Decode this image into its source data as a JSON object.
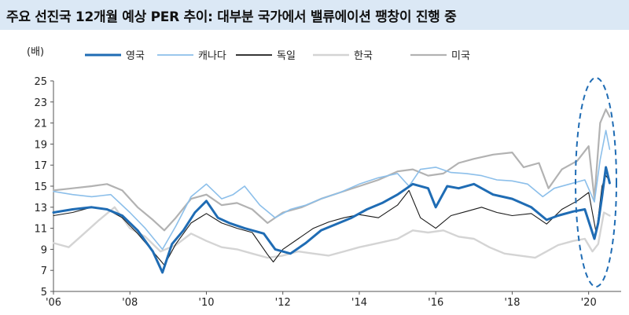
{
  "title": "주요 선진국 12개월 예상 PER 추이: 대부분 국가에서 밸류에이션 팽창이 진행 중",
  "chart_data": {
    "type": "line",
    "ylabel": "(배)",
    "ylim": [
      5,
      25
    ],
    "yticks": [
      5,
      7,
      9,
      11,
      13,
      15,
      17,
      19,
      21,
      23,
      25
    ],
    "xlim": [
      2006.0,
      2020.85
    ],
    "xticks": [
      {
        "label": "'06",
        "value": 2006
      },
      {
        "label": "'08",
        "value": 2008
      },
      {
        "label": "'10",
        "value": 2010
      },
      {
        "label": "'12",
        "value": 2012
      },
      {
        "label": "'14",
        "value": 2014
      },
      {
        "label": "'16",
        "value": 2016
      },
      {
        "label": "'18",
        "value": 2018
      },
      {
        "label": "'20",
        "value": 2020
      }
    ],
    "legend_position": "top",
    "annotation": "dashed ellipse highlighting 2020",
    "series": [
      {
        "name": "영국",
        "color": "#1f6cb4",
        "width": 3,
        "x": [
          2006.0,
          2006.5,
          2007.0,
          2007.4,
          2007.8,
          2008.2,
          2008.6,
          2008.85,
          2009.1,
          2009.4,
          2009.7,
          2010.0,
          2010.3,
          2010.6,
          2011.0,
          2011.5,
          2011.8,
          2012.2,
          2012.6,
          2013.0,
          2013.4,
          2013.8,
          2014.2,
          2014.6,
          2015.0,
          2015.4,
          2015.8,
          2016.0,
          2016.3,
          2016.6,
          2017.0,
          2017.5,
          2018.0,
          2018.5,
          2018.9,
          2019.2,
          2019.6,
          2019.9,
          2020.15,
          2020.25,
          2020.35,
          2020.45,
          2020.55
        ],
        "y": [
          12.5,
          12.8,
          13.0,
          12.8,
          12.2,
          10.8,
          8.8,
          6.8,
          9.5,
          10.8,
          12.5,
          13.6,
          12.0,
          11.5,
          11.0,
          10.5,
          9.0,
          8.6,
          9.6,
          10.8,
          11.4,
          12.0,
          12.8,
          13.4,
          14.2,
          15.2,
          14.8,
          13.0,
          15.0,
          14.8,
          15.2,
          14.2,
          13.8,
          13.0,
          11.8,
          12.2,
          12.6,
          12.8,
          10.0,
          11.5,
          14.0,
          16.8,
          15.3
        ]
      },
      {
        "name": "캐나다",
        "color": "#8cbfea",
        "width": 1.6,
        "x": [
          2006.0,
          2006.5,
          2007.0,
          2007.5,
          2008.0,
          2008.4,
          2008.85,
          2009.2,
          2009.6,
          2010.0,
          2010.4,
          2010.7,
          2011.0,
          2011.4,
          2011.8,
          2012.2,
          2012.6,
          2013.0,
          2013.5,
          2014.0,
          2014.5,
          2015.0,
          2015.3,
          2015.6,
          2016.0,
          2016.4,
          2016.8,
          2017.2,
          2017.6,
          2018.0,
          2018.4,
          2018.8,
          2019.1,
          2019.5,
          2019.9,
          2020.15,
          2020.3,
          2020.45,
          2020.55
        ],
        "y": [
          14.5,
          14.2,
          14.0,
          14.2,
          12.5,
          11.0,
          9.0,
          11.2,
          14.0,
          15.2,
          13.8,
          14.2,
          15.0,
          13.2,
          12.0,
          12.8,
          13.2,
          13.8,
          14.4,
          15.2,
          15.8,
          16.2,
          15.0,
          16.6,
          16.8,
          16.3,
          16.2,
          16.0,
          15.6,
          15.5,
          15.2,
          14.0,
          14.8,
          15.2,
          15.6,
          13.5,
          17.5,
          20.3,
          18.5
        ]
      },
      {
        "name": "독일",
        "color": "#1a1a1a",
        "width": 1.1,
        "x": [
          2006.0,
          2006.5,
          2007.0,
          2007.4,
          2007.8,
          2008.2,
          2008.6,
          2008.9,
          2009.2,
          2009.6,
          2010.0,
          2010.4,
          2010.8,
          2011.2,
          2011.6,
          2011.75,
          2012.0,
          2012.4,
          2012.8,
          2013.2,
          2013.6,
          2014.0,
          2014.5,
          2015.0,
          2015.3,
          2015.6,
          2016.0,
          2016.4,
          2016.8,
          2017.2,
          2017.6,
          2018.0,
          2018.5,
          2018.9,
          2019.3,
          2019.7,
          2020.0,
          2020.2,
          2020.35,
          2020.45,
          2020.55
        ],
        "y": [
          12.2,
          12.5,
          13.0,
          12.8,
          12.0,
          10.5,
          8.8,
          7.5,
          9.5,
          11.5,
          12.4,
          11.5,
          11.0,
          10.6,
          8.5,
          7.8,
          9.0,
          10.0,
          11.0,
          11.6,
          12.0,
          12.3,
          12.0,
          13.2,
          14.6,
          12.0,
          11.0,
          12.2,
          12.6,
          13.0,
          12.5,
          12.2,
          12.4,
          11.4,
          12.8,
          13.6,
          14.4,
          10.5,
          15.0,
          16.0,
          15.5
        ]
      },
      {
        "name": "한국",
        "color": "#d4d4d4",
        "width": 2.4,
        "x": [
          2006.0,
          2006.4,
          2006.8,
          2007.2,
          2007.6,
          2008.0,
          2008.4,
          2008.8,
          2009.2,
          2009.6,
          2010.0,
          2010.4,
          2010.8,
          2011.2,
          2011.6,
          2012.0,
          2012.4,
          2012.8,
          2013.2,
          2013.6,
          2014.0,
          2014.5,
          2015.0,
          2015.4,
          2015.8,
          2016.2,
          2016.6,
          2017.0,
          2017.4,
          2017.8,
          2018.2,
          2018.6,
          2018.9,
          2019.2,
          2019.6,
          2019.9,
          2020.1,
          2020.25,
          2020.4,
          2020.55
        ],
        "y": [
          9.6,
          9.2,
          10.5,
          11.8,
          13.0,
          11.0,
          10.2,
          8.8,
          9.4,
          10.5,
          9.8,
          9.2,
          9.0,
          8.6,
          8.2,
          8.4,
          8.8,
          8.6,
          8.4,
          8.8,
          9.2,
          9.6,
          10.0,
          10.8,
          10.6,
          10.8,
          10.2,
          10.0,
          9.2,
          8.6,
          8.4,
          8.2,
          8.8,
          9.4,
          9.8,
          10.0,
          8.8,
          9.5,
          12.5,
          12.2
        ]
      },
      {
        "name": "미국",
        "color": "#b2b2b2",
        "width": 2.2,
        "x": [
          2006.0,
          2006.5,
          2007.0,
          2007.4,
          2007.8,
          2008.2,
          2008.6,
          2008.9,
          2009.2,
          2009.6,
          2010.0,
          2010.4,
          2010.8,
          2011.2,
          2011.6,
          2012.0,
          2012.5,
          2013.0,
          2013.5,
          2014.0,
          2014.5,
          2015.0,
          2015.4,
          2015.8,
          2016.2,
          2016.6,
          2017.0,
          2017.5,
          2018.0,
          2018.3,
          2018.7,
          2018.95,
          2019.3,
          2019.7,
          2020.0,
          2020.15,
          2020.3,
          2020.45,
          2020.55
        ],
        "y": [
          14.6,
          14.8,
          15.0,
          15.2,
          14.6,
          13.0,
          11.8,
          10.8,
          12.0,
          13.8,
          14.2,
          13.2,
          13.4,
          12.8,
          11.5,
          12.5,
          13.0,
          13.8,
          14.4,
          15.0,
          15.6,
          16.4,
          16.6,
          16.0,
          16.2,
          17.2,
          17.6,
          18.0,
          18.2,
          16.8,
          17.2,
          14.8,
          16.6,
          17.4,
          18.8,
          13.8,
          21.0,
          22.3,
          21.6
        ]
      }
    ]
  }
}
